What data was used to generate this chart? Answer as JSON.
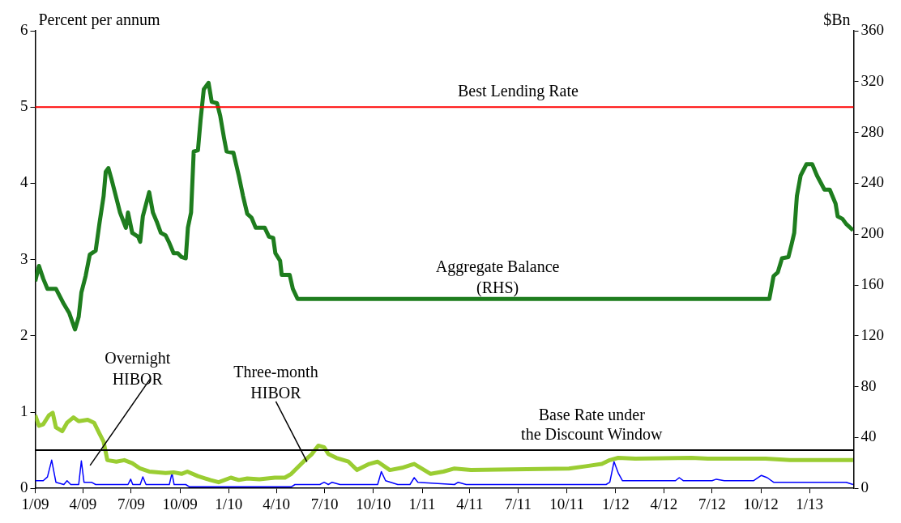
{
  "chart_data": {
    "type": "line",
    "ylabel": "Percent per annum",
    "y2label": "$Bn",
    "xlim": [
      "2009-01-01",
      "2013-03-25"
    ],
    "xticks": [
      {
        "value": "2009-01",
        "label": "1/09"
      },
      {
        "value": "2009-04",
        "label": "4/09"
      },
      {
        "value": "2009-07",
        "label": "7/09"
      },
      {
        "value": "2009-10",
        "label": "10/09"
      },
      {
        "value": "2010-01",
        "label": "1/10"
      },
      {
        "value": "2010-04",
        "label": "4/10"
      },
      {
        "value": "2010-07",
        "label": "7/10"
      },
      {
        "value": "2010-10",
        "label": "10/10"
      },
      {
        "value": "2011-01",
        "label": "1/11"
      },
      {
        "value": "2011-04",
        "label": "4/11"
      },
      {
        "value": "2011-07",
        "label": "7/11"
      },
      {
        "value": "2011-10",
        "label": "10/11"
      },
      {
        "value": "2012-01",
        "label": "1/12"
      },
      {
        "value": "2012-04",
        "label": "4/12"
      },
      {
        "value": "2012-07",
        "label": "7/12"
      },
      {
        "value": "2012-10",
        "label": "10/12"
      },
      {
        "value": "2013-01",
        "label": "1/13"
      }
    ],
    "ylim": [
      0,
      6
    ],
    "yticks": [
      0,
      1,
      2,
      3,
      4,
      5,
      6
    ],
    "y2lim": [
      0,
      360
    ],
    "y2ticks": [
      0,
      40,
      80,
      120,
      160,
      200,
      240,
      280,
      320,
      360
    ],
    "grid": false,
    "legend": false,
    "marker": "none",
    "line_style": "solid",
    "series": [
      {
        "name": "Aggregate Balance (RHS)",
        "color": "#1e7d1e",
        "axis": "y2",
        "x": [
          "2009-01-01",
          "2009-01-08",
          "2009-01-16",
          "2009-01-24",
          "2009-02-09",
          "2009-02-24",
          "2009-03-06",
          "2009-03-17",
          "2009-03-24",
          "2009-03-29",
          "2009-04-06",
          "2009-04-14",
          "2009-04-25",
          "2009-05-02",
          "2009-05-10",
          "2009-05-14",
          "2009-05-19",
          "2009-05-25",
          "2009-06-10",
          "2009-06-21",
          "2009-06-25",
          "2009-07-03",
          "2009-07-14",
          "2009-07-18",
          "2009-07-23",
          "2009-08-04",
          "2009-08-11",
          "2009-08-19",
          "2009-08-26",
          "2009-09-04",
          "2009-09-11",
          "2009-09-19",
          "2009-09-27",
          "2009-10-04",
          "2009-10-12",
          "2009-10-16",
          "2009-10-22",
          "2009-10-27",
          "2009-11-04",
          "2009-11-09",
          "2009-11-15",
          "2009-11-24",
          "2009-11-30",
          "2009-12-10",
          "2009-12-16",
          "2009-12-23",
          "2009-12-28",
          "2010-01-10",
          "2010-01-20",
          "2010-01-28",
          "2010-02-05",
          "2010-02-13",
          "2010-02-21",
          "2010-03-10",
          "2010-03-18",
          "2010-03-26",
          "2010-03-30",
          "2010-04-08",
          "2010-04-11",
          "2010-04-26",
          "2010-05-02",
          "2010-05-11",
          "2012-10-17",
          "2012-10-25",
          "2012-11-02",
          "2012-11-10",
          "2012-11-22",
          "2012-11-28",
          "2012-12-03",
          "2012-12-08",
          "2012-12-15",
          "2012-12-26",
          "2013-01-06",
          "2013-01-15",
          "2013-01-29",
          "2013-02-08",
          "2013-02-19",
          "2013-02-23",
          "2013-03-04",
          "2013-03-11",
          "2013-03-24"
        ],
        "values": [
          163,
          175,
          165,
          157,
          157,
          145,
          138,
          125,
          135,
          154,
          167,
          184,
          187,
          208,
          230,
          249,
          252,
          243,
          217,
          205,
          217,
          201,
          198,
          194,
          214,
          233,
          217,
          209,
          201,
          199,
          193,
          185,
          185,
          182,
          181,
          205,
          217,
          265,
          266,
          290,
          314,
          319,
          304,
          303,
          293,
          276,
          265,
          264,
          246,
          230,
          216,
          213,
          205,
          205,
          198,
          197,
          185,
          179,
          168,
          168,
          157,
          149,
          149,
          167,
          170,
          181,
          182,
          192,
          201,
          230,
          246,
          255,
          255,
          246,
          235,
          235,
          224,
          214,
          212,
          208,
          203
        ]
      },
      {
        "name": "Three-month HIBOR",
        "color": "#9acd32",
        "x": [
          "2009-01-01",
          "2009-01-08",
          "2009-01-16",
          "2009-01-27",
          "2009-02-03",
          "2009-02-09",
          "2009-02-21",
          "2009-03-02",
          "2009-03-14",
          "2009-03-24",
          "2009-04-10",
          "2009-04-22",
          "2009-05-02",
          "2009-05-10",
          "2009-05-17",
          "2009-06-03",
          "2009-06-18",
          "2009-07-03",
          "2009-07-18",
          "2009-08-04",
          "2009-09-04",
          "2009-09-19",
          "2009-10-04",
          "2009-10-15",
          "2009-11-04",
          "2009-11-27",
          "2009-12-13",
          "2010-01-05",
          "2010-01-20",
          "2010-02-05",
          "2010-02-28",
          "2010-03-29",
          "2010-04-17",
          "2010-04-29",
          "2010-05-22",
          "2010-06-07",
          "2010-06-19",
          "2010-06-30",
          "2010-07-08",
          "2010-07-23",
          "2010-08-15",
          "2010-08-31",
          "2010-09-23",
          "2010-10-09",
          "2010-11-01",
          "2010-11-24",
          "2010-12-17",
          "2011-01-17",
          "2011-02-10",
          "2011-03-03",
          "2011-04-03",
          "2011-10-05",
          "2011-11-06",
          "2011-12-06",
          "2011-12-21",
          "2012-01-06",
          "2012-02-07",
          "2012-05-23",
          "2012-06-23",
          "2012-10-10",
          "2012-11-25",
          "2013-03-24"
        ],
        "values": [
          0.96,
          0.82,
          0.84,
          0.96,
          0.99,
          0.8,
          0.75,
          0.86,
          0.93,
          0.88,
          0.9,
          0.86,
          0.72,
          0.61,
          0.37,
          0.35,
          0.37,
          0.33,
          0.26,
          0.22,
          0.2,
          0.21,
          0.19,
          0.22,
          0.16,
          0.11,
          0.08,
          0.14,
          0.11,
          0.13,
          0.12,
          0.14,
          0.14,
          0.19,
          0.35,
          0.45,
          0.56,
          0.54,
          0.45,
          0.4,
          0.35,
          0.24,
          0.32,
          0.35,
          0.24,
          0.27,
          0.32,
          0.19,
          0.22,
          0.26,
          0.24,
          0.26,
          0.29,
          0.32,
          0.37,
          0.4,
          0.39,
          0.4,
          0.39,
          0.39,
          0.37,
          0.37
        ]
      },
      {
        "name": "Overnight HIBOR",
        "color": "#0000ff",
        "x": [
          "2009-01-01",
          "2009-01-16",
          "2009-01-24",
          "2009-02-01",
          "2009-02-09",
          "2009-02-24",
          "2009-03-02",
          "2009-03-09",
          "2009-03-24",
          "2009-03-29",
          "2009-04-03",
          "2009-04-17",
          "2009-04-25",
          "2009-06-25",
          "2009-06-30",
          "2009-07-04",
          "2009-07-18",
          "2009-07-23",
          "2009-07-29",
          "2009-09-11",
          "2009-09-16",
          "2009-09-20",
          "2009-10-12",
          "2009-10-19",
          "2010-04-29",
          "2010-05-06",
          "2010-06-22",
          "2010-06-30",
          "2010-07-08",
          "2010-07-15",
          "2010-07-30",
          "2010-10-09",
          "2010-10-16",
          "2010-10-24",
          "2010-11-16",
          "2010-12-09",
          "2010-12-17",
          "2010-12-24",
          "2011-03-03",
          "2011-03-10",
          "2011-03-25",
          "2011-12-14",
          "2011-12-21",
          "2011-12-29",
          "2012-01-06",
          "2012-01-14",
          "2012-04-23",
          "2012-04-30",
          "2012-05-08",
          "2012-07-01",
          "2012-07-09",
          "2012-07-24",
          "2012-09-17",
          "2012-10-02",
          "2012-10-13",
          "2012-10-25",
          "2013-03-11",
          "2013-03-24"
        ],
        "values": [
          0.1,
          0.1,
          0.15,
          0.37,
          0.08,
          0.05,
          0.1,
          0.05,
          0.05,
          0.36,
          0.08,
          0.08,
          0.05,
          0.05,
          0.12,
          0.05,
          0.05,
          0.15,
          0.05,
          0.05,
          0.2,
          0.05,
          0.05,
          0.02,
          0.02,
          0.05,
          0.05,
          0.08,
          0.05,
          0.08,
          0.05,
          0.05,
          0.22,
          0.1,
          0.05,
          0.05,
          0.14,
          0.08,
          0.05,
          0.08,
          0.05,
          0.05,
          0.08,
          0.35,
          0.2,
          0.1,
          0.1,
          0.14,
          0.1,
          0.1,
          0.12,
          0.1,
          0.1,
          0.17,
          0.14,
          0.08,
          0.08,
          0.05
        ]
      }
    ],
    "ref_lines": [
      {
        "axis": "y",
        "value": 5,
        "label": "Best Lending Rate",
        "color": "#ff0000"
      },
      {
        "axis": "y",
        "value": 0.5,
        "label": "Base Rate under the Discount Window",
        "color": "#000000"
      }
    ]
  }
}
